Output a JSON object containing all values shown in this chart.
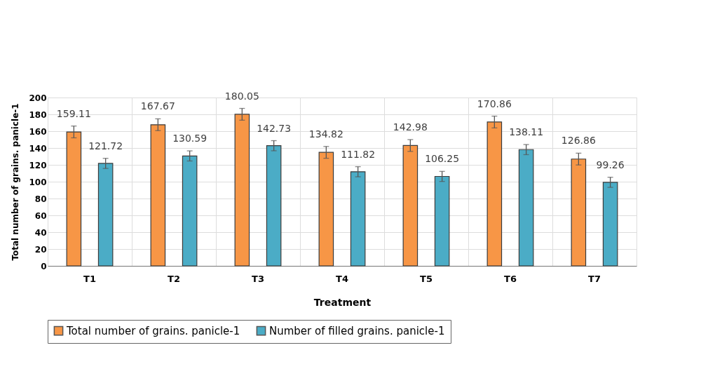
{
  "chart_data": {
    "type": "bar",
    "xlabel": "Treatment",
    "ylabel": "Total number of grains. panicle-1",
    "categories": [
      "T1",
      "T2",
      "T3",
      "T4",
      "T5",
      "T6",
      "T7"
    ],
    "series": [
      {
        "name": "Total number of grains. panicle-1",
        "color": "#f79646",
        "values": [
          159.11,
          167.67,
          180.05,
          134.82,
          142.98,
          170.86,
          126.86
        ],
        "errors": [
          7,
          7,
          7,
          7,
          7,
          7,
          7
        ]
      },
      {
        "name": "Number of filled grains. panicle-1",
        "color": "#4bacc6",
        "values": [
          121.72,
          130.59,
          142.73,
          111.82,
          106.25,
          138.11,
          99.26
        ],
        "errors": [
          6,
          6,
          6,
          6,
          6,
          6,
          6
        ]
      }
    ],
    "ylim": [
      0,
      200
    ],
    "yticks": [
      0,
      20,
      40,
      60,
      80,
      100,
      120,
      140,
      160,
      180,
      200
    ],
    "grid": true,
    "legend": "bottom",
    "data_labels": true
  }
}
